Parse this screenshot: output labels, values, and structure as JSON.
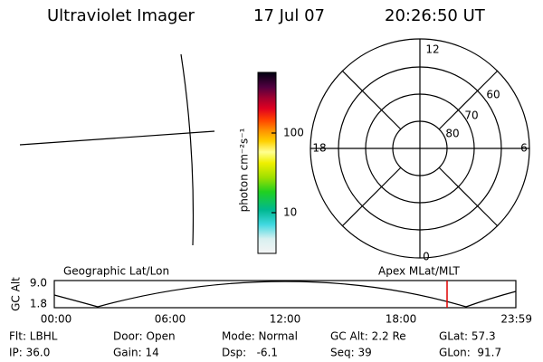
{
  "header": {
    "instrument": "Ultraviolet Imager",
    "date": "17 Jul 07",
    "time": "20:26:50 UT"
  },
  "colorbar": {
    "label": "photon cm⁻²s⁻¹",
    "ticks": [
      "100",
      "10"
    ]
  },
  "polar": {
    "ring_labels": [
      "60",
      "70",
      "80"
    ],
    "clock_labels": {
      "top": "12",
      "left": "18",
      "right": "6",
      "bottom": "0"
    }
  },
  "altitude_panel": {
    "axis_label": "GC Alt",
    "yticks": [
      "9.0",
      "1.8"
    ],
    "left_title": "Geographic Lat/Lon",
    "right_title": "Apex MLat/MLT",
    "xticks": [
      "00:00",
      "06:00",
      "12:00",
      "18:00",
      "23:59"
    ]
  },
  "status": {
    "rows": [
      [
        "Flt: LBHL",
        "Door: Open",
        "Mode: Normal",
        "GC Alt: 2.2 Re",
        "GLat: 57.3"
      ],
      [
        "IP: 36.0",
        "Gain: 14",
        "Dsp:   -6.1",
        "Seq: 39",
        "GLon:  91.7"
      ]
    ]
  }
}
